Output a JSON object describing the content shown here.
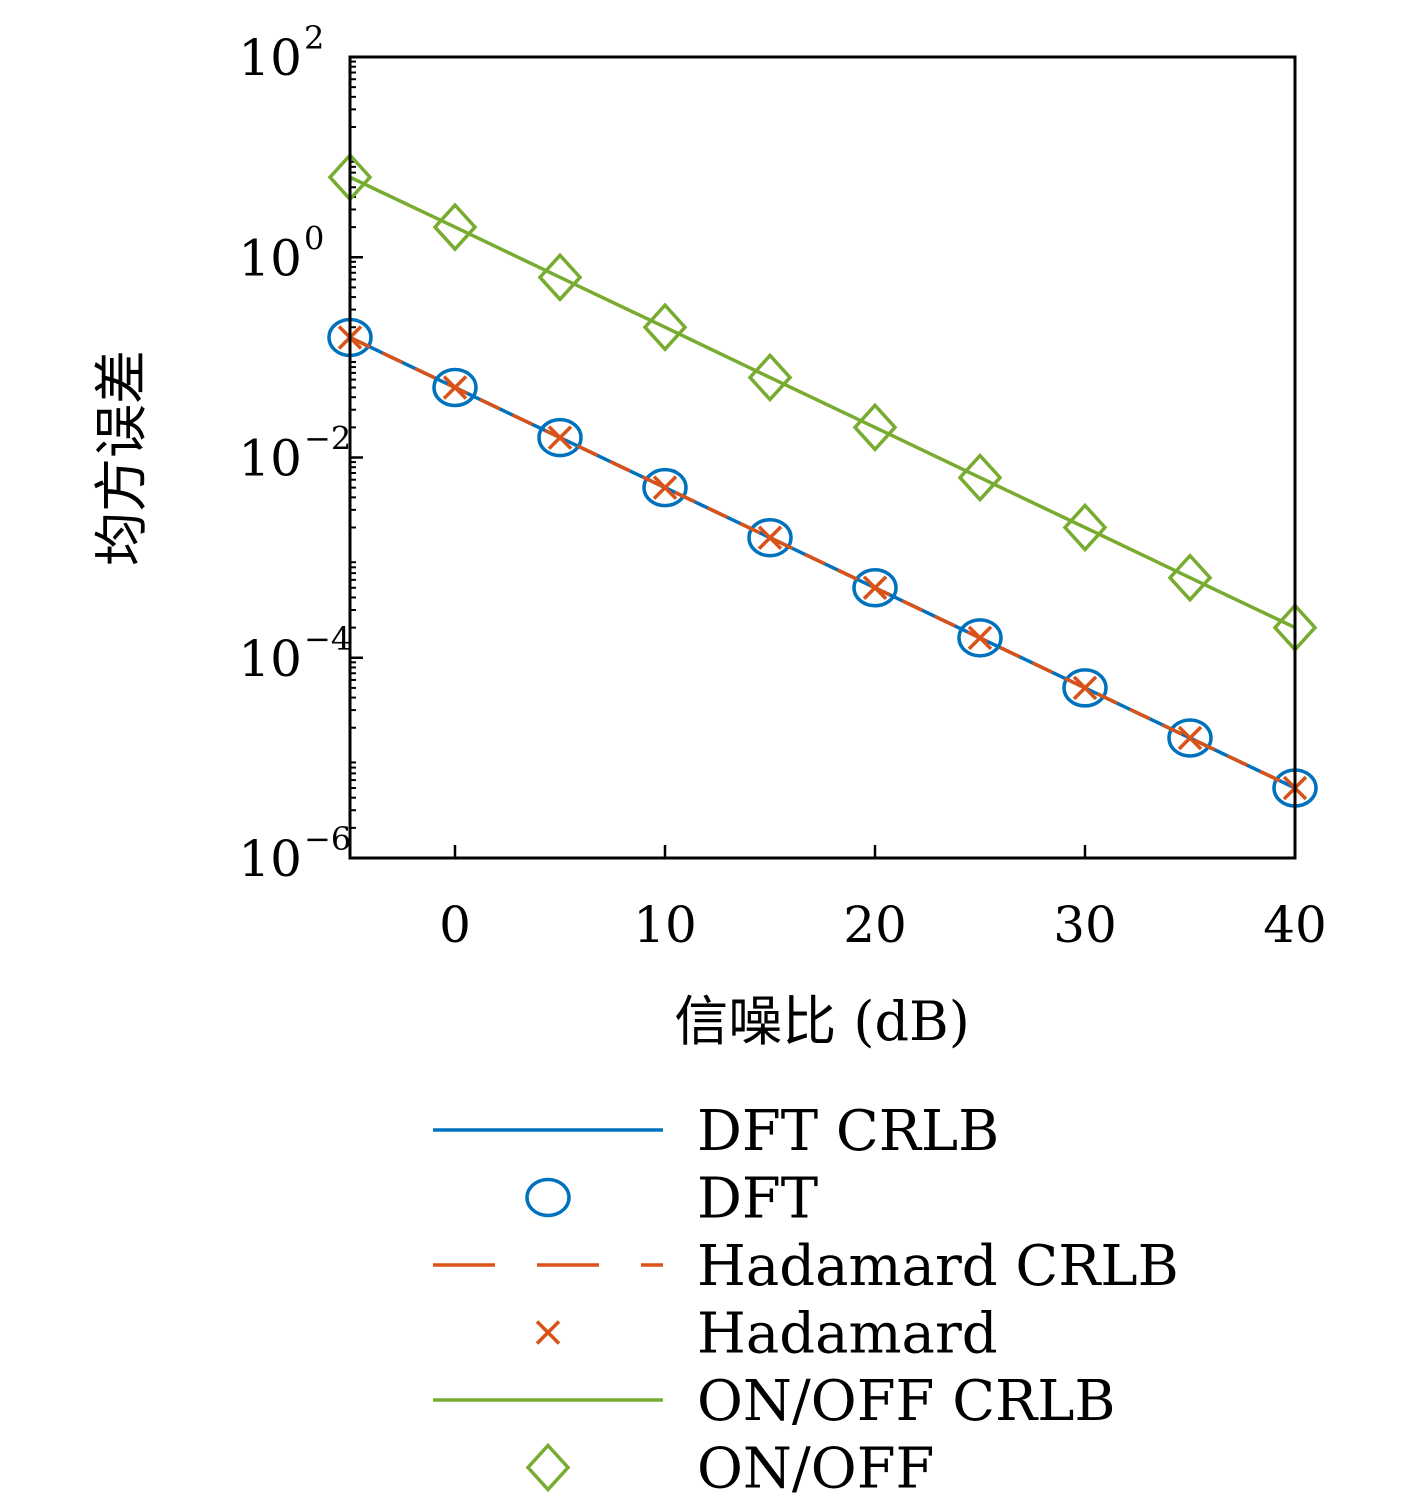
{
  "chart_data": {
    "type": "line",
    "xlabel": "信噪比 (dB)",
    "ylabel": "均方误差",
    "x": [
      -5,
      0,
      5,
      10,
      15,
      20,
      25,
      30,
      35,
      40
    ],
    "xlim": [
      -5,
      40
    ],
    "xticks": [
      0,
      10,
      20,
      30,
      40
    ],
    "xtick_labels": [
      "0",
      "10",
      "20",
      "30",
      "40"
    ],
    "ylim": [
      1e-06,
      100
    ],
    "yscale": "log",
    "ytick_exponents": [
      2,
      0,
      -2,
      -4,
      -6
    ],
    "ytick_base": "10",
    "ytick_exp_labels": [
      "2",
      "0",
      "−2",
      "−4",
      "−6"
    ],
    "grid": false,
    "legend_position": "below",
    "series": [
      {
        "name": "DFT CRLB",
        "style": "solid",
        "marker": "none",
        "color": "#0072BD",
        "values": [
          0.158,
          0.05,
          0.0158,
          0.005,
          0.00158,
          0.0005,
          0.000158,
          5e-05,
          1.58e-05,
          5e-06
        ]
      },
      {
        "name": "DFT",
        "style": "none",
        "marker": "circle",
        "color": "#0072BD",
        "values": [
          0.158,
          0.05,
          0.0158,
          0.005,
          0.00158,
          0.0005,
          0.000158,
          5e-05,
          1.58e-05,
          5e-06
        ]
      },
      {
        "name": "Hadamard CRLB",
        "style": "dashed",
        "marker": "none",
        "color": "#D95319",
        "values": [
          0.158,
          0.05,
          0.0158,
          0.005,
          0.00158,
          0.0005,
          0.000158,
          5e-05,
          1.58e-05,
          5e-06
        ]
      },
      {
        "name": "Hadamard",
        "style": "none",
        "marker": "x",
        "color": "#D95319",
        "values": [
          0.158,
          0.05,
          0.0158,
          0.005,
          0.00158,
          0.0005,
          0.000158,
          5e-05,
          1.58e-05,
          5e-06
        ]
      },
      {
        "name": "ON/OFF CRLB",
        "style": "solid",
        "marker": "none",
        "color": "#77AC30",
        "values": [
          6.3,
          2.0,
          0.63,
          0.2,
          0.063,
          0.02,
          0.0063,
          0.002,
          0.00063,
          0.0002
        ]
      },
      {
        "name": "ON/OFF",
        "style": "none",
        "marker": "diamond",
        "color": "#77AC30",
        "values": [
          6.3,
          2.0,
          0.63,
          0.2,
          0.063,
          0.02,
          0.0063,
          0.002,
          0.00063,
          0.0002
        ]
      }
    ]
  }
}
